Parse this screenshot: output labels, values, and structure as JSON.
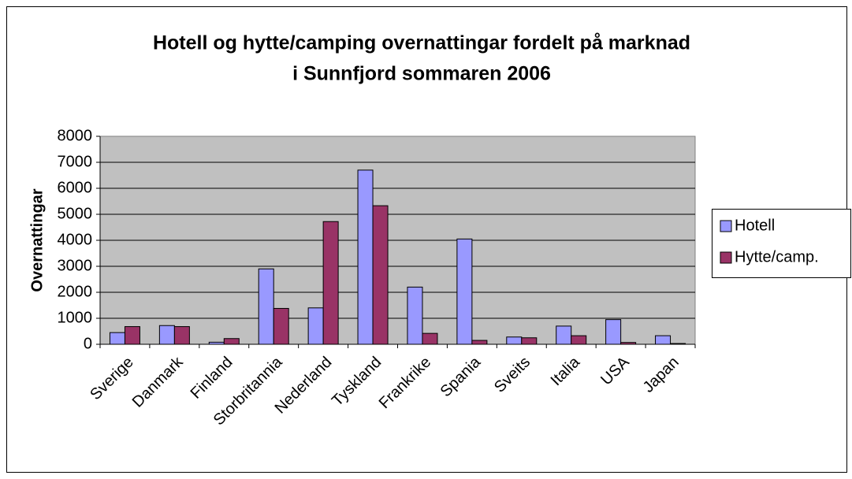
{
  "chart_data": {
    "type": "bar",
    "title": "Hotell og hytte/camping overnattingar fordelt på marknad i Sunnfjord sommaren 2006",
    "ylabel": "Overnattingar",
    "categories": [
      "Sverige",
      "Danmark",
      "Finland",
      "Storbritannia",
      "Nederland",
      "Tyskland",
      "Frankrike",
      "Spania",
      "Sveits",
      "Italia",
      "USA",
      "Japan"
    ],
    "series": [
      {
        "name": "Hotell",
        "color": "#9999ff",
        "values": [
          450,
          720,
          80,
          2900,
          1400,
          6700,
          2200,
          4050,
          280,
          700,
          950,
          330
        ]
      },
      {
        "name": "Hytte/camp.",
        "color": "#993366",
        "values": [
          680,
          680,
          220,
          1380,
          4720,
          5330,
          420,
          150,
          250,
          330,
          70,
          30
        ]
      }
    ],
    "ylim": [
      0,
      8000
    ],
    "yticks": [
      0,
      1000,
      2000,
      3000,
      4000,
      5000,
      6000,
      7000,
      8000
    ],
    "grid": true,
    "legend": "right"
  }
}
